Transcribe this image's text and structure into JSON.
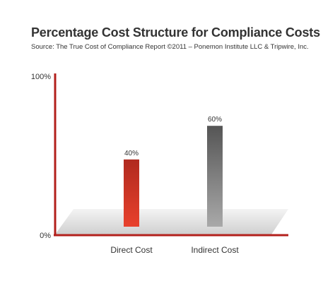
{
  "chart_data": {
    "type": "bar",
    "title": "Percentage Cost Structure for Compliance Costs",
    "subtitle": "Source: The True Cost of Compliance Report  ©2011 – Ponemon Institute LLC & Tripwire, Inc.",
    "categories": [
      "Direct Cost",
      "Indirect Cost"
    ],
    "values": [
      40,
      60
    ],
    "data_labels": [
      "40%",
      "60%"
    ],
    "ylim": [
      0,
      100
    ],
    "yticks": [
      "0%",
      "100%"
    ],
    "xlabel": "",
    "ylabel": "",
    "grid": false,
    "colors": {
      "axis": "#b3201c",
      "bar_direct_top": "#b02a1f",
      "bar_direct_bottom": "#e8412c",
      "bar_indirect_top": "#555555",
      "bar_indirect_bottom": "#a9a9a9",
      "floor": "#d9d9d9"
    }
  }
}
